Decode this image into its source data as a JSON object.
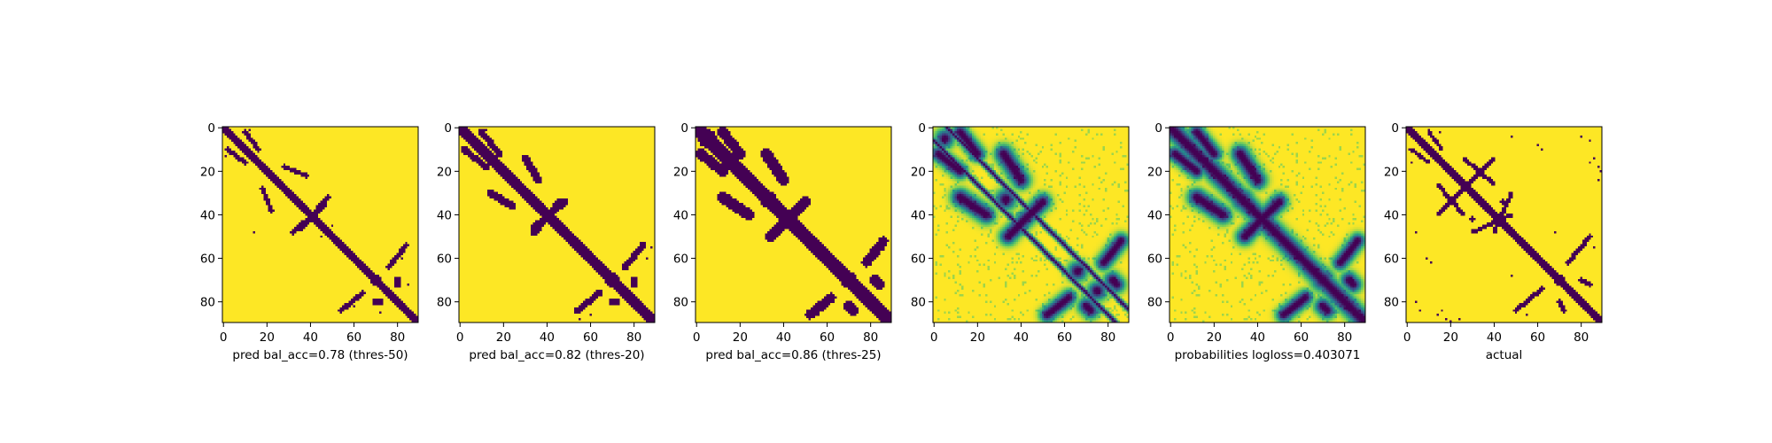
{
  "colors": {
    "low": "#440154",
    "high": "#fde725"
  },
  "chart_data": [
    {
      "type": "heatmap",
      "mode": "binary",
      "xlabel": "pred bal_acc=0.78 (thres-50)",
      "xticks": [
        0,
        20,
        40,
        60,
        80
      ],
      "yticks": [
        0,
        20,
        40,
        60,
        80
      ],
      "xlim": [
        0,
        90
      ],
      "ylim": [
        90,
        0
      ],
      "features": {
        "diag": [
          [
            0,
            0,
            90,
            90,
            1.6
          ]
        ],
        "bands": [
          [
            2,
            10,
            10,
            16,
            1.0
          ],
          [
            22,
            38,
            18,
            28,
            1.0
          ],
          [
            48,
            32,
            36,
            46,
            1.1
          ],
          [
            54,
            84,
            64,
            76,
            1.0
          ],
          [
            70,
            80,
            72,
            80,
            1.4
          ]
        ],
        "blobs": [
          [
            70,
            70,
            2.2
          ],
          [
            4,
            4,
            1.5
          ],
          [
            48,
            14,
            0.9
          ]
        ],
        "dots": [
          [
            1,
            12
          ],
          [
            13,
            1
          ],
          [
            45,
            50
          ],
          [
            50,
            45
          ],
          [
            72,
            85
          ],
          [
            85,
            72
          ],
          [
            60,
            82
          ],
          [
            82,
            60
          ]
        ]
      }
    },
    {
      "type": "heatmap",
      "mode": "binary",
      "xlabel": "pred bal_acc=0.82 (thres-20)",
      "xticks": [
        0,
        20,
        40,
        60,
        80
      ],
      "yticks": [
        0,
        20,
        40,
        60,
        80
      ],
      "xlim": [
        0,
        90
      ],
      "ylim": [
        90,
        0
      ],
      "features": {
        "diag": [
          [
            0,
            0,
            90,
            90,
            2.4
          ]
        ],
        "bands": [
          [
            2,
            10,
            12,
            18,
            1.4
          ],
          [
            24,
            36,
            14,
            30,
            1.6
          ],
          [
            46,
            34,
            34,
            48,
            1.5
          ],
          [
            54,
            84,
            64,
            76,
            1.4
          ],
          [
            70,
            80,
            72,
            80,
            1.8
          ],
          [
            60,
            86,
            60,
            86,
            0.9
          ]
        ],
        "blobs": [
          [
            70,
            70,
            3.0
          ],
          [
            4,
            4,
            2.0
          ],
          [
            34,
            34,
            2.0
          ]
        ],
        "dots": [
          [
            1,
            12
          ],
          [
            12,
            2
          ],
          [
            55,
            88
          ],
          [
            88,
            55
          ]
        ]
      }
    },
    {
      "type": "heatmap",
      "mode": "binary",
      "xlabel": "pred bal_acc=0.86 (thres-25)",
      "xticks": [
        0,
        20,
        40,
        60,
        80
      ],
      "yticks": [
        0,
        20,
        40,
        60,
        80
      ],
      "xlim": [
        0,
        90
      ],
      "ylim": [
        90,
        0
      ],
      "features": {
        "diag": [
          [
            0,
            0,
            90,
            90,
            3.2
          ]
        ],
        "bands": [
          [
            2,
            12,
            12,
            20,
            2.2
          ],
          [
            24,
            40,
            12,
            32,
            2.4
          ],
          [
            48,
            36,
            34,
            50,
            2.2
          ],
          [
            52,
            86,
            62,
            78,
            2.0
          ],
          [
            70,
            82,
            72,
            84,
            2.4
          ]
        ],
        "blobs": [
          [
            70,
            70,
            3.6
          ],
          [
            5,
            5,
            4.0
          ],
          [
            33,
            33,
            3.6
          ],
          [
            46,
            46,
            2.0
          ]
        ],
        "dots": [
          [
            1,
            14
          ],
          [
            14,
            1
          ],
          [
            56,
            86
          ],
          [
            86,
            56
          ]
        ]
      }
    },
    {
      "type": "heatmap",
      "mode": "continuous",
      "xlabel": "",
      "xticks": [
        0,
        20,
        40,
        60,
        80
      ],
      "yticks": [
        0,
        20,
        40,
        60,
        80
      ],
      "xlim": [
        0,
        90
      ],
      "ylim": [
        90,
        0
      ],
      "features": {
        "diag": [
          [
            0,
            6,
            84,
            90,
            0.8
          ],
          [
            6,
            0,
            90,
            84,
            0.8
          ]
        ],
        "bands": [
          [
            2,
            12,
            12,
            20,
            2.4
          ],
          [
            24,
            40,
            12,
            32,
            2.8
          ],
          [
            48,
            36,
            34,
            50,
            2.6
          ],
          [
            52,
            86,
            62,
            78,
            2.4
          ],
          [
            70,
            82,
            72,
            84,
            2.6
          ]
        ],
        "blobs": [
          [
            5,
            5,
            3.0
          ],
          [
            33,
            33,
            3.2
          ],
          [
            66,
            66,
            3.0
          ],
          [
            75,
            75,
            3.0
          ]
        ],
        "dots": []
      }
    },
    {
      "type": "heatmap",
      "mode": "continuous",
      "xlabel": "probabilities logloss=0.403071",
      "xticks": [
        0,
        20,
        40,
        60,
        80
      ],
      "yticks": [
        0,
        20,
        40,
        60,
        80
      ],
      "xlim": [
        0,
        90
      ],
      "ylim": [
        90,
        0
      ],
      "features": {
        "diag": [
          [
            0,
            0,
            90,
            90,
            3.0
          ]
        ],
        "bands": [
          [
            2,
            12,
            12,
            20,
            2.4
          ],
          [
            24,
            40,
            12,
            32,
            2.8
          ],
          [
            48,
            36,
            34,
            50,
            2.6
          ],
          [
            52,
            86,
            62,
            78,
            2.4
          ],
          [
            70,
            82,
            72,
            84,
            2.6
          ]
        ],
        "blobs": [
          [
            5,
            5,
            3.0
          ],
          [
            33,
            33,
            3.4
          ],
          [
            70,
            70,
            3.6
          ]
        ],
        "dots": []
      }
    },
    {
      "type": "heatmap",
      "mode": "binary",
      "xlabel": "actual",
      "xticks": [
        0,
        20,
        40,
        60,
        80
      ],
      "yticks": [
        0,
        20,
        40,
        60,
        80
      ],
      "xlim": [
        0,
        90
      ],
      "ylim": [
        90,
        0
      ],
      "features": {
        "diag": [
          [
            0,
            0,
            90,
            90,
            1.4
          ]
        ],
        "bands": [
          [
            2,
            10,
            10,
            16,
            0.9
          ],
          [
            26,
            40,
            14,
            26,
            0.9
          ],
          [
            40,
            14,
            26,
            28,
            0.9
          ],
          [
            48,
            30,
            40,
            48,
            0.9
          ],
          [
            50,
            84,
            62,
            74,
            1.0
          ],
          [
            70,
            80,
            72,
            84,
            1.0
          ]
        ],
        "blobs": [
          [
            70,
            70,
            2.2
          ],
          [
            3,
            3,
            1.4
          ],
          [
            42,
            30,
            1.0
          ],
          [
            34,
            44,
            1.0
          ]
        ],
        "dots": [
          [
            1,
            10
          ],
          [
            2,
            15
          ],
          [
            10,
            1
          ],
          [
            16,
            2
          ],
          [
            8,
            60
          ],
          [
            10,
            62
          ],
          [
            60,
            9
          ],
          [
            62,
            11
          ],
          [
            4,
            80
          ],
          [
            6,
            84
          ],
          [
            80,
            4
          ],
          [
            84,
            6
          ],
          [
            18,
            88
          ],
          [
            20,
            89
          ],
          [
            88,
            18
          ],
          [
            89,
            20
          ],
          [
            48,
            68
          ],
          [
            68,
            48
          ],
          [
            55,
            86
          ],
          [
            86,
            55
          ],
          [
            84,
            16
          ],
          [
            86,
            14
          ],
          [
            16,
            84
          ],
          [
            14,
            86
          ],
          [
            24,
            88
          ],
          [
            88,
            24
          ],
          [
            48,
            4
          ],
          [
            4,
            48
          ]
        ]
      }
    }
  ]
}
